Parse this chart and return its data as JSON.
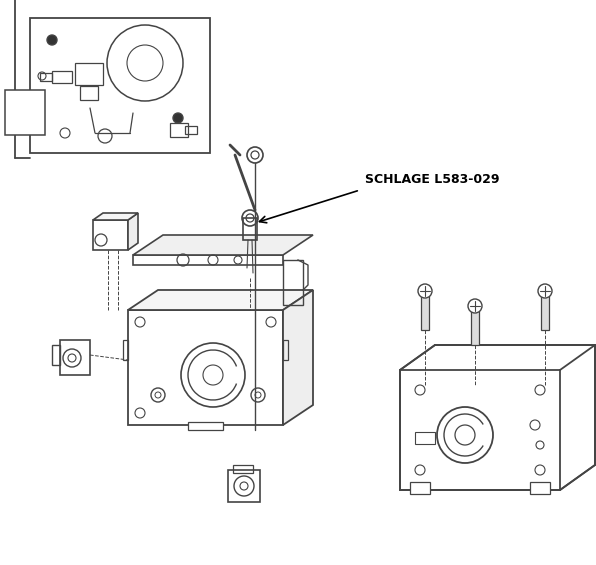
{
  "title": "SCHLAGE L583-029",
  "bg_color": "#ffffff",
  "line_color": "#444444",
  "text_color": "#000000",
  "label_fontsize": 9,
  "fig_width": 5.96,
  "fig_height": 5.65,
  "dpi": 100
}
